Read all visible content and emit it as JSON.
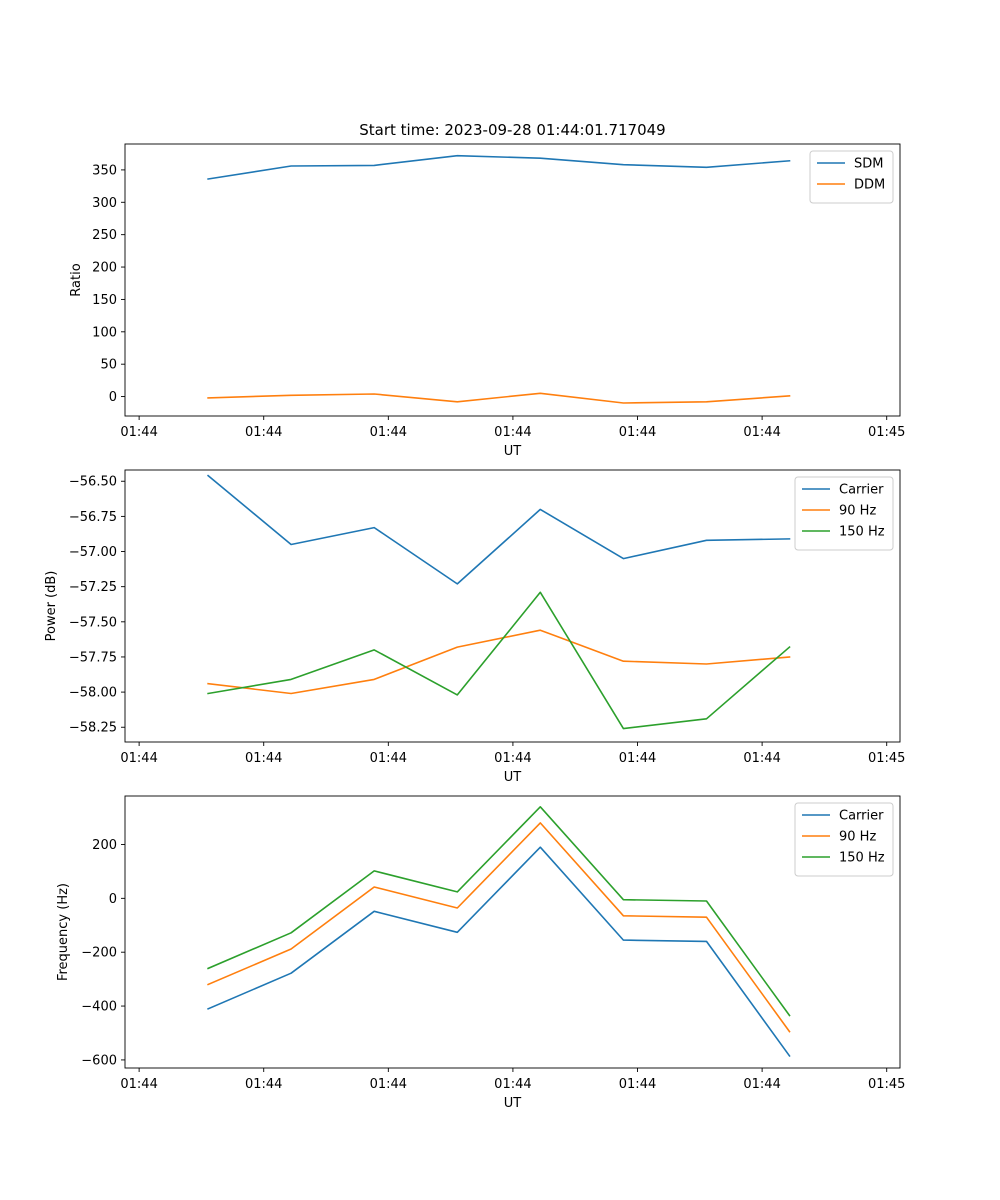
{
  "chart_data": [
    {
      "type": "line",
      "title": "Start time: 2023-09-28 01:44:01.717049",
      "xlabel": "UT",
      "ylabel": "Ratio",
      "x": [
        1,
        2,
        3,
        4,
        5,
        6,
        7,
        8
      ],
      "xlim": [
        0,
        9.33
      ],
      "xticks": [
        {
          "value": 0.17,
          "label": "01:44"
        },
        {
          "value": 1.67,
          "label": "01:44"
        },
        {
          "value": 3.17,
          "label": "01:44"
        },
        {
          "value": 4.67,
          "label": "01:44"
        },
        {
          "value": 6.17,
          "label": "01:44"
        },
        {
          "value": 7.67,
          "label": "01:44"
        },
        {
          "value": 9.17,
          "label": "01:45"
        }
      ],
      "ylim": [
        -30,
        390
      ],
      "yticks": [
        0,
        50,
        100,
        150,
        200,
        250,
        300,
        350
      ],
      "legend_position": "upper right",
      "series": [
        {
          "name": "SDM",
          "color": "#1f77b4",
          "values": [
            336,
            356,
            357,
            372,
            368,
            358,
            354,
            364
          ]
        },
        {
          "name": "DDM",
          "color": "#ff7f0e",
          "values": [
            -2,
            2,
            4,
            -8,
            5,
            -10,
            -8,
            1
          ]
        }
      ]
    },
    {
      "type": "line",
      "title": "",
      "xlabel": "UT",
      "ylabel": "Power (dB)",
      "x": [
        1,
        2,
        3,
        4,
        5,
        6,
        7,
        8
      ],
      "xlim": [
        0,
        9.33
      ],
      "xticks": [
        {
          "value": 0.17,
          "label": "01:44"
        },
        {
          "value": 1.67,
          "label": "01:44"
        },
        {
          "value": 3.17,
          "label": "01:44"
        },
        {
          "value": 4.67,
          "label": "01:44"
        },
        {
          "value": 6.17,
          "label": "01:44"
        },
        {
          "value": 7.67,
          "label": "01:44"
        },
        {
          "value": 9.17,
          "label": "01:45"
        }
      ],
      "ylim": [
        -58.355,
        -56.42
      ],
      "yticks": [
        -58.25,
        -58.0,
        -57.75,
        -57.5,
        -57.25,
        -57.0,
        -56.75,
        -56.5
      ],
      "ytick_decimals": 2,
      "legend_position": "upper right",
      "series": [
        {
          "name": "Carrier",
          "color": "#1f77b4",
          "values": [
            -56.46,
            -56.95,
            -56.83,
            -57.23,
            -56.7,
            -57.05,
            -56.92,
            -56.91
          ]
        },
        {
          "name": "90 Hz",
          "color": "#ff7f0e",
          "values": [
            -57.94,
            -58.01,
            -57.91,
            -57.68,
            -57.56,
            -57.78,
            -57.8,
            -57.75
          ]
        },
        {
          "name": "150 Hz",
          "color": "#2ca02c",
          "values": [
            -58.01,
            -57.91,
            -57.7,
            -58.02,
            -57.29,
            -58.26,
            -58.19,
            -57.68
          ]
        }
      ]
    },
    {
      "type": "line",
      "title": "",
      "xlabel": "UT",
      "ylabel": "Frequency (Hz)",
      "x": [
        1,
        2,
        3,
        4,
        5,
        6,
        7,
        8
      ],
      "xlim": [
        0,
        9.33
      ],
      "xticks": [
        {
          "value": 0.17,
          "label": "01:44"
        },
        {
          "value": 1.67,
          "label": "01:44"
        },
        {
          "value": 3.17,
          "label": "01:44"
        },
        {
          "value": 4.67,
          "label": "01:44"
        },
        {
          "value": 6.17,
          "label": "01:44"
        },
        {
          "value": 7.67,
          "label": "01:44"
        },
        {
          "value": 9.17,
          "label": "01:45"
        }
      ],
      "ylim": [
        -630,
        380
      ],
      "yticks": [
        -600,
        -400,
        -200,
        0,
        200
      ],
      "legend_position": "upper right",
      "series": [
        {
          "name": "Carrier",
          "color": "#1f77b4",
          "values": [
            -410,
            -278,
            -48,
            -126,
            190,
            -155,
            -160,
            -585
          ]
        },
        {
          "name": "90 Hz",
          "color": "#ff7f0e",
          "values": [
            -320,
            -188,
            42,
            -36,
            280,
            -65,
            -70,
            -495
          ]
        },
        {
          "name": "150 Hz",
          "color": "#2ca02c",
          "values": [
            -260,
            -128,
            102,
            24,
            340,
            -5,
            -10,
            -435
          ]
        }
      ]
    }
  ]
}
